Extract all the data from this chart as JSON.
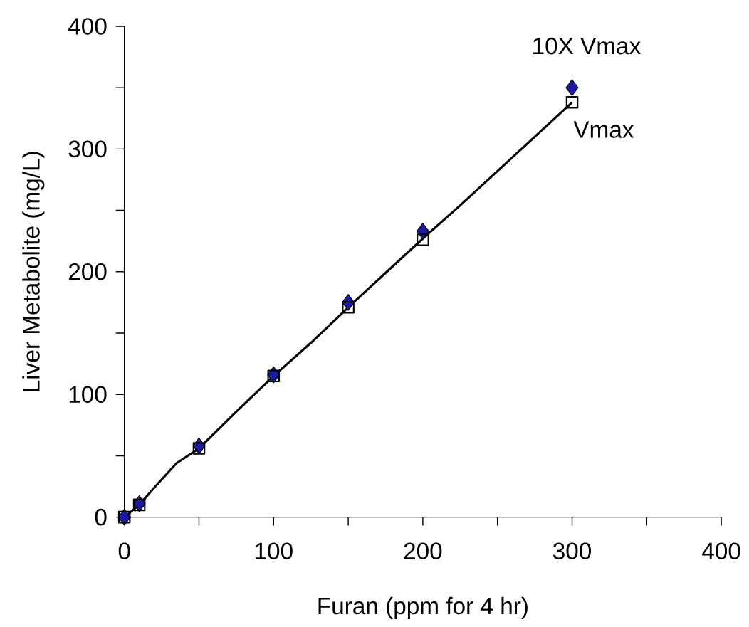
{
  "chart_data": {
    "type": "scatter",
    "xlabel": "Furan (ppm for 4 hr)",
    "ylabel": "Liver Metabolite (mg/L)",
    "xlim": [
      0,
      400
    ],
    "ylim": [
      0,
      400
    ],
    "xticks": [
      0,
      {
        "value": 50,
        "label": null
      },
      100,
      {
        "value": 150,
        "label": null
      },
      200,
      {
        "value": 250,
        "label": null
      },
      300,
      {
        "value": 350,
        "label": null
      },
      400
    ],
    "yticks": [
      0,
      {
        "value": 50,
        "label": null
      },
      100,
      {
        "value": 150,
        "label": null
      },
      200,
      {
        "value": 250,
        "label": null
      },
      300,
      {
        "value": 350,
        "label": null
      },
      400
    ],
    "grid": false,
    "series": [
      {
        "name": "10X Vmax",
        "marker": "diamond",
        "color": "#1a1aa0",
        "x": [
          0,
          10,
          50,
          100,
          150,
          200,
          300
        ],
        "values": [
          0,
          11,
          58,
          116,
          175,
          233,
          350
        ]
      },
      {
        "name": "Vmax",
        "marker": "square",
        "color": "#000000",
        "x": [
          0,
          10,
          50,
          100,
          150,
          200,
          300
        ],
        "values": [
          0,
          10,
          56,
          115,
          171,
          226,
          338
        ]
      },
      {
        "type": "line",
        "marker": "none",
        "line_style": "solid",
        "color": "#000000",
        "x": [
          0,
          10,
          20,
          35,
          50,
          75,
          100,
          125,
          150,
          175,
          200,
          225,
          250,
          275,
          300
        ],
        "values": [
          0,
          10,
          24,
          44,
          56,
          86,
          115,
          142,
          171,
          199,
          227,
          254,
          282,
          310,
          338
        ]
      }
    ]
  }
}
